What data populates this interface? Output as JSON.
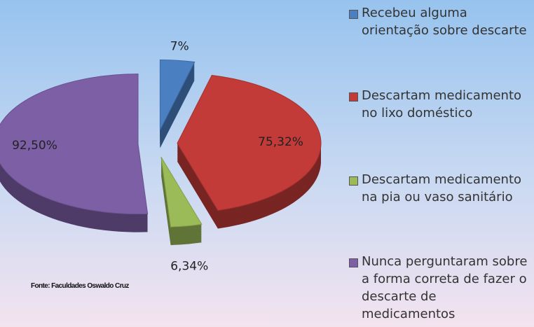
{
  "chart_data": {
    "type": "pie",
    "categories": [
      "Recebeu alguma orientação sobre descarte",
      "Descartam medicamento no lixo doméstico",
      "Descartam medicamento na pia ou vaso sanitário",
      "Nunca perguntaram sobre a forma correta de fazer o descarte de medicamentos"
    ],
    "values": [
      7,
      75.32,
      6.34,
      92.5
    ],
    "value_labels": [
      "7%",
      "75,32%",
      "6,34%",
      "92,50%"
    ],
    "colors": [
      "#4a7fc1",
      "#c23b38",
      "#9bbb59",
      "#7d5fa6"
    ],
    "source": "Fonte: Faculdades Oswaldo Cruz",
    "legend": "right"
  }
}
